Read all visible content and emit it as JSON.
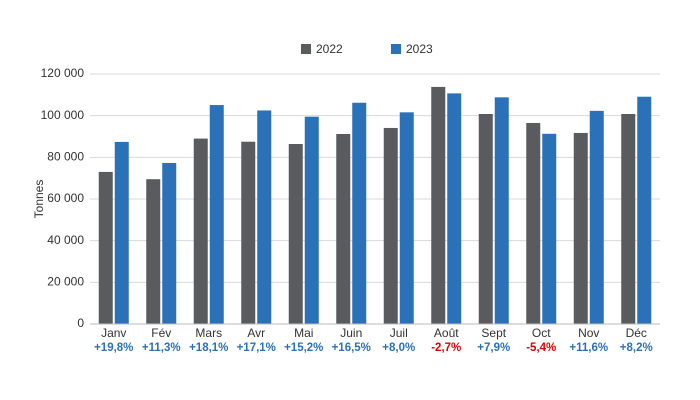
{
  "chart_data": {
    "type": "bar",
    "y_label": "Tonnes",
    "categories": [
      "Janv",
      "Fév",
      "Mars",
      "Avr",
      "Mai",
      "Juin",
      "Juil",
      "Août",
      "Sept",
      "Oct",
      "Nov",
      "Déc"
    ],
    "series": [
      {
        "name": "2022",
        "color": "#595b5e",
        "values": [
          73000,
          69500,
          89000,
          87500,
          86400,
          91200,
          94100,
          113800,
          100800,
          96500,
          91700,
          100800
        ]
      },
      {
        "name": "2023",
        "color": "#2a71b7",
        "values": [
          87400,
          77300,
          105100,
          102500,
          99500,
          106200,
          101600,
          110700,
          108800,
          91300,
          102300,
          109100
        ]
      }
    ],
    "annotations": [
      "+19,8%",
      "+11,3%",
      "+18,1%",
      "+17,1%",
      "+15,2%",
      "+16,5%",
      "+8,0%",
      "-2,7%",
      "+7,9%",
      "-5,4%",
      "+11,6%",
      "+8,2%"
    ],
    "annotation_colors": {
      "positive": "#2a71b7",
      "negative": "#e00000"
    },
    "ylim": [
      0,
      120000
    ],
    "yticks": [
      0,
      {
        "value": 20000,
        "label": "20 000"
      },
      {
        "value": 40000,
        "label": "40 000"
      },
      {
        "value": 60000,
        "label": "60 000"
      },
      {
        "value": 80000,
        "label": "80 000"
      },
      {
        "value": 100000,
        "label": "100 000"
      },
      {
        "value": 120000,
        "label": "120 000"
      }
    ],
    "grid": true,
    "legend": "top"
  }
}
